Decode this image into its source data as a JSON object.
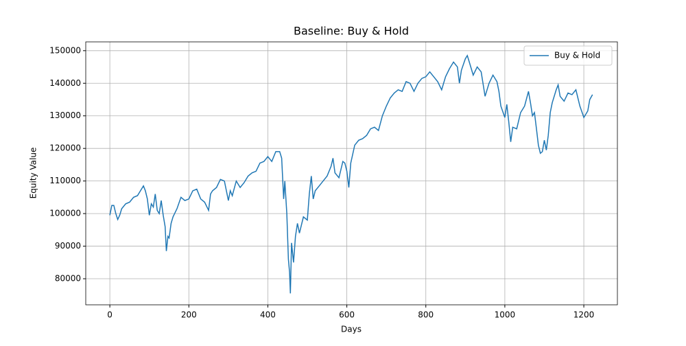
{
  "chart_data": {
    "type": "line",
    "title": "Baseline: Buy & Hold",
    "x_label": "Days",
    "y_label": "Equity Value",
    "x": [
      0,
      5,
      10,
      15,
      20,
      25,
      30,
      40,
      50,
      60,
      70,
      80,
      85,
      90,
      95,
      100,
      105,
      110,
      115,
      120,
      125,
      130,
      135,
      140,
      143,
      147,
      150,
      155,
      160,
      170,
      180,
      190,
      200,
      210,
      220,
      230,
      240,
      250,
      255,
      260,
      270,
      280,
      290,
      295,
      300,
      305,
      310,
      320,
      330,
      340,
      350,
      360,
      370,
      380,
      390,
      400,
      410,
      420,
      430,
      435,
      440,
      443,
      448,
      452,
      455,
      457,
      460,
      465,
      470,
      475,
      480,
      490,
      500,
      505,
      510,
      515,
      520,
      530,
      540,
      550,
      560,
      565,
      570,
      580,
      590,
      595,
      600,
      605,
      610,
      620,
      630,
      640,
      650,
      660,
      670,
      680,
      690,
      700,
      710,
      720,
      730,
      740,
      750,
      760,
      770,
      780,
      790,
      800,
      810,
      820,
      830,
      840,
      850,
      860,
      870,
      880,
      885,
      890,
      900,
      905,
      910,
      920,
      930,
      940,
      950,
      960,
      970,
      980,
      985,
      990,
      1000,
      1005,
      1010,
      1015,
      1020,
      1030,
      1040,
      1050,
      1060,
      1065,
      1070,
      1075,
      1080,
      1085,
      1090,
      1095,
      1100,
      1105,
      1110,
      1115,
      1120,
      1130,
      1135,
      1140,
      1150,
      1160,
      1170,
      1180,
      1190,
      1200,
      1210,
      1215,
      1222
    ],
    "series": [
      {
        "name": "Buy & Hold",
        "color": "#1f77b4",
        "values": [
          99500,
          102500,
          102500,
          100000,
          98200,
          99500,
          101500,
          103000,
          103500,
          105000,
          105500,
          107500,
          108500,
          107000,
          104500,
          99500,
          103000,
          102000,
          106000,
          101000,
          100000,
          104000,
          99500,
          96000,
          88500,
          93000,
          92500,
          97000,
          99000,
          101500,
          105000,
          104000,
          104500,
          107000,
          107500,
          104500,
          103500,
          101000,
          106000,
          107000,
          108000,
          110500,
          110000,
          107000,
          104000,
          107000,
          105500,
          110000,
          108000,
          109500,
          111500,
          112500,
          113000,
          115500,
          116000,
          117500,
          116000,
          119000,
          119000,
          117000,
          104500,
          110000,
          100000,
          86000,
          82000,
          75500,
          91000,
          85000,
          93000,
          97000,
          94000,
          99000,
          98000,
          106000,
          111500,
          104500,
          107000,
          108500,
          110000,
          111500,
          114500,
          117000,
          112500,
          111000,
          116000,
          115500,
          113000,
          108000,
          115500,
          121000,
          122500,
          123000,
          124000,
          126000,
          126500,
          125500,
          130000,
          133000,
          135500,
          137000,
          138000,
          137500,
          140500,
          140000,
          137500,
          140000,
          141500,
          142000,
          143500,
          142000,
          140500,
          138000,
          142000,
          144500,
          146500,
          145000,
          140000,
          144000,
          147500,
          148500,
          146500,
          142500,
          145000,
          143500,
          136000,
          140000,
          142500,
          140500,
          137500,
          133000,
          129500,
          133500,
          128000,
          122000,
          126500,
          126000,
          131000,
          133000,
          137500,
          134000,
          130000,
          131000,
          126000,
          121000,
          118500,
          119000,
          122500,
          119500,
          124000,
          131000,
          134000,
          138000,
          139500,
          136000,
          134500,
          137000,
          136500,
          138000,
          133000,
          129500,
          131500,
          135000,
          136500
        ]
      }
    ],
    "xlim": [
      -61,
      1285
    ],
    "ylim": [
      72000,
      152700
    ],
    "xticks": [
      0,
      200,
      400,
      600,
      800,
      1000,
      1200
    ],
    "yticks": [
      80000,
      90000,
      100000,
      110000,
      120000,
      130000,
      140000,
      150000
    ],
    "grid": true,
    "legend": "upper right"
  }
}
